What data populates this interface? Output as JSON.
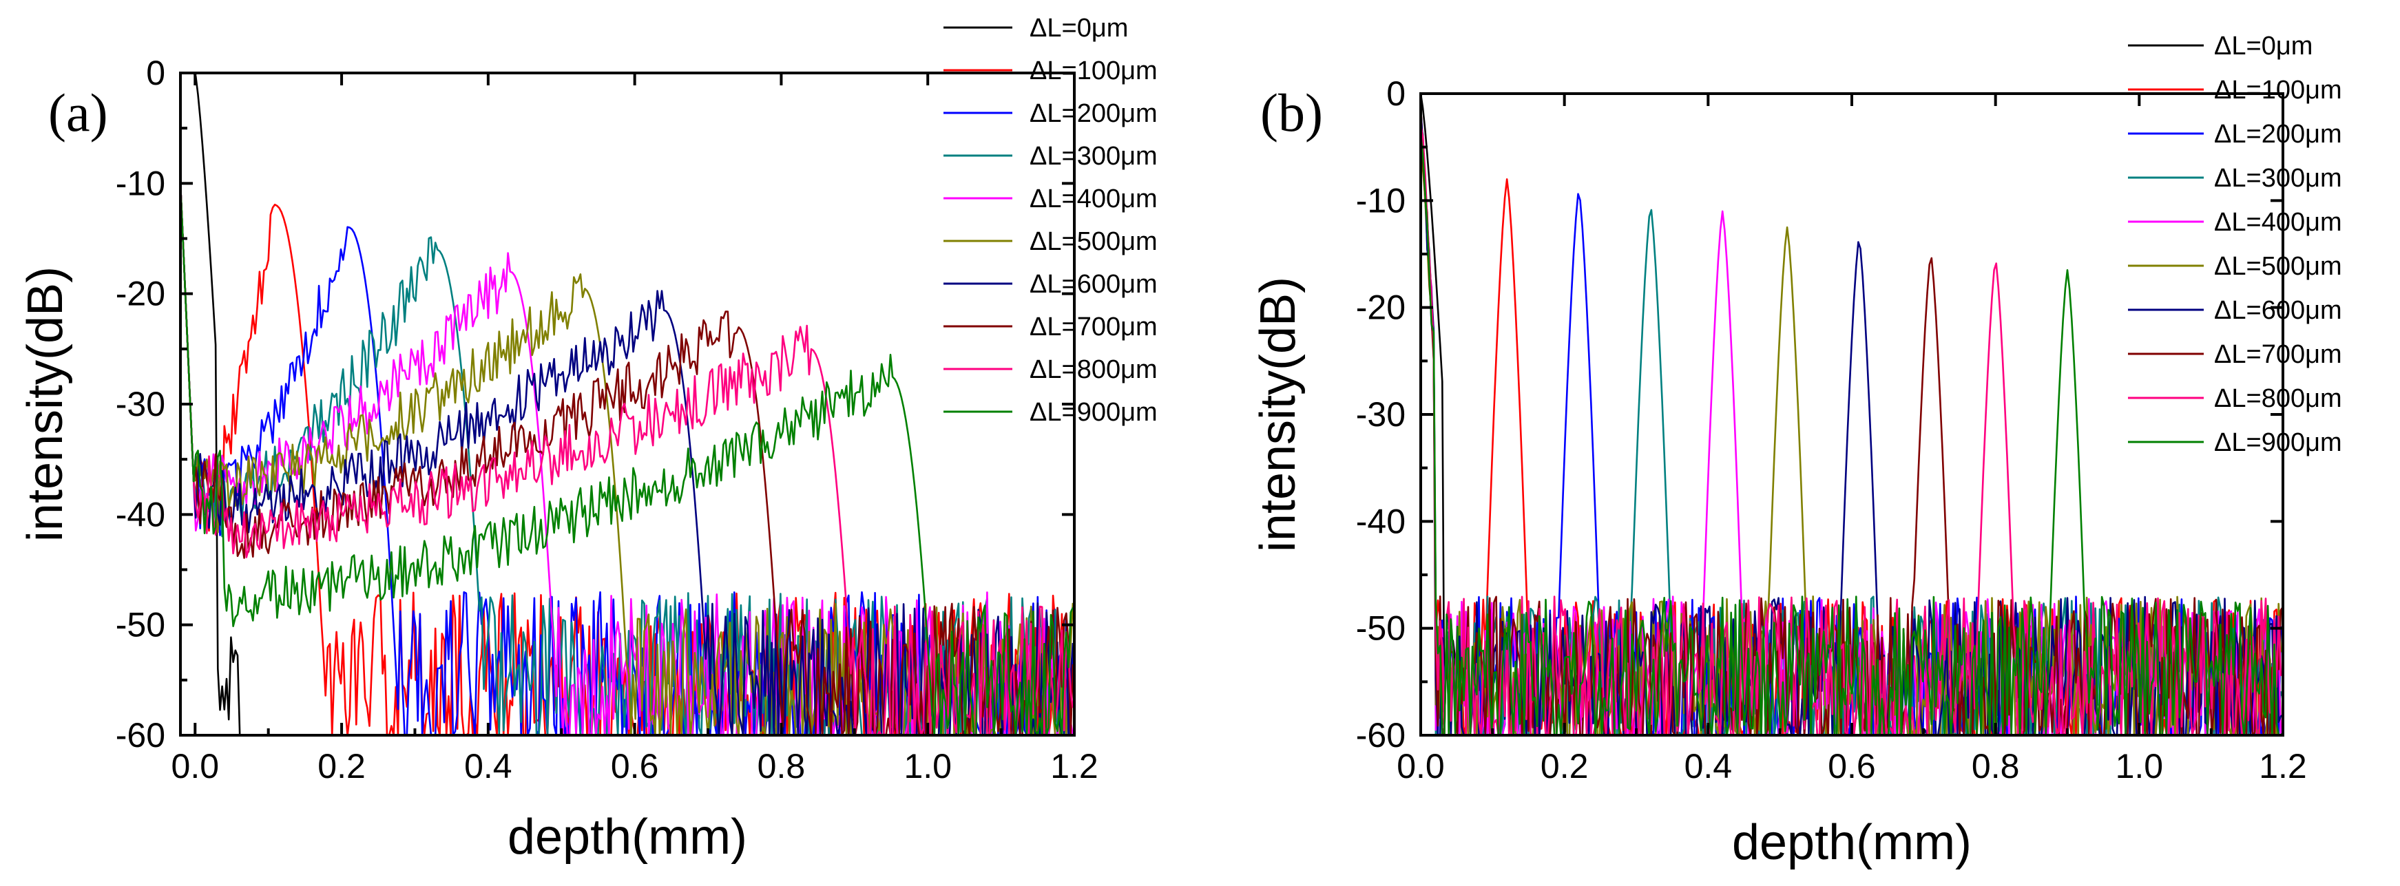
{
  "chart_data": [
    {
      "type": "line",
      "panel_label": "(a)",
      "xlabel": "depth(mm)",
      "ylabel": "intensity(dB)",
      "xlim": [
        -0.02,
        1.2
      ],
      "ylim": [
        -60,
        0
      ],
      "xticks": [
        "0.0",
        "0.2",
        "0.4",
        "0.6",
        "0.8",
        "1.0",
        "1.2"
      ],
      "yticks": [
        "0",
        "-10",
        "-20",
        "-30",
        "-40",
        "-50",
        "-60"
      ],
      "legend_position": "top-right",
      "series": [
        {
          "name": "ΔL=0μm",
          "color": "#000000",
          "peak_x": 0.0,
          "peak_y": 0,
          "floor": -60,
          "shape": "broad",
          "left_y": -60,
          "noise_min": 0,
          "noise_max": 0.1
        },
        {
          "name": "ΔL=100μm",
          "color": "#ff0000",
          "peak_x": 0.11,
          "peak_y": -12,
          "floor": -55,
          "shape": "broad",
          "left_y": -40,
          "noise_min": 0,
          "noise_max": 1.2
        },
        {
          "name": "ΔL=200μm",
          "color": "#0000ff",
          "peak_x": 0.21,
          "peak_y": -14,
          "floor": -55,
          "shape": "broad",
          "left_y": -40,
          "noise_min": 0,
          "noise_max": 1.2
        },
        {
          "name": "ΔL=300μm",
          "color": "#008080",
          "peak_x": 0.33,
          "peak_y": -16,
          "floor": -55,
          "shape": "broad",
          "left_y": -40,
          "noise_min": 0,
          "noise_max": 1.2
        },
        {
          "name": "ΔL=400μm",
          "color": "#ff00ff",
          "peak_x": 0.43,
          "peak_y": -18,
          "floor": -55,
          "shape": "broad",
          "left_y": -38,
          "noise_min": 0,
          "noise_max": 1.2
        },
        {
          "name": "ΔL=500μm",
          "color": "#808000",
          "peak_x": 0.53,
          "peak_y": -19.5,
          "floor": -56,
          "shape": "broad",
          "left_y": -38,
          "noise_min": 0,
          "noise_max": 1.2
        },
        {
          "name": "ΔL=600μm",
          "color": "#000080",
          "peak_x": 0.64,
          "peak_y": -21.5,
          "floor": -56,
          "shape": "broad",
          "left_y": -40,
          "noise_min": 0,
          "noise_max": 1.2
        },
        {
          "name": "ΔL=700μm",
          "color": "#800000",
          "peak_x": 0.74,
          "peak_y": -23,
          "floor": -56,
          "shape": "broad",
          "left_y": -42,
          "noise_min": 0,
          "noise_max": 1.2
        },
        {
          "name": "ΔL=800μm",
          "color": "#ff0080",
          "peak_x": 0.84,
          "peak_y": -25,
          "floor": -56,
          "shape": "broad",
          "left_y": -42,
          "noise_min": 0,
          "noise_max": 1.2
        },
        {
          "name": "ΔL=900μm",
          "color": "#008000",
          "peak_x": 0.95,
          "peak_y": -27.5,
          "floor": -56,
          "shape": "broad",
          "left_y": -48,
          "noise_min": 0,
          "noise_max": 1.2
        }
      ]
    },
    {
      "type": "line",
      "panel_label": "(b)",
      "xlabel": "depth(mm)",
      "ylabel": "intensity(dB)",
      "xlim": [
        0.0,
        1.2
      ],
      "ylim": [
        -60,
        0
      ],
      "xticks": [
        "0.0",
        "0.2",
        "0.4",
        "0.6",
        "0.8",
        "1.0",
        "1.2"
      ],
      "yticks": [
        "0",
        "-10",
        "-20",
        "-30",
        "-40",
        "-50",
        "-60"
      ],
      "legend_position": "top-right",
      "series": [
        {
          "name": "ΔL=0μm",
          "color": "#000000",
          "peak_x": 0.0,
          "peak_y": 0,
          "floor": -60,
          "shape": "sharp",
          "noise_min": 0,
          "noise_max": 0.1
        },
        {
          "name": "ΔL=100μm",
          "color": "#ff0000",
          "peak_x": 0.12,
          "peak_y": -8,
          "floor": -55,
          "shape": "sharp",
          "noise_min": 0,
          "noise_max": 1.2
        },
        {
          "name": "ΔL=200μm",
          "color": "#0000ff",
          "peak_x": 0.22,
          "peak_y": -9,
          "floor": -55,
          "shape": "sharp",
          "noise_min": 0,
          "noise_max": 1.2
        },
        {
          "name": "ΔL=300μm",
          "color": "#008080",
          "peak_x": 0.32,
          "peak_y": -10.5,
          "floor": -55,
          "shape": "sharp",
          "noise_min": 0,
          "noise_max": 1.2
        },
        {
          "name": "ΔL=400μm",
          "color": "#ff00ff",
          "peak_x": 0.42,
          "peak_y": -11,
          "floor": -55,
          "shape": "sharp",
          "noise_min": 0,
          "noise_max": 1.2
        },
        {
          "name": "ΔL=500μm",
          "color": "#808000",
          "peak_x": 0.51,
          "peak_y": -12.5,
          "floor": -55,
          "shape": "sharp",
          "noise_min": 0,
          "noise_max": 1.2
        },
        {
          "name": "ΔL=600μm",
          "color": "#000080",
          "peak_x": 0.61,
          "peak_y": -13.5,
          "floor": -55,
          "shape": "sharp",
          "noise_min": 0,
          "noise_max": 1.2
        },
        {
          "name": "ΔL=700μm",
          "color": "#800000",
          "peak_x": 0.71,
          "peak_y": -15,
          "floor": -55,
          "shape": "sharp",
          "noise_min": 0,
          "noise_max": 1.2
        },
        {
          "name": "ΔL=800μm",
          "color": "#ff0080",
          "peak_x": 0.8,
          "peak_y": -15.5,
          "floor": -55,
          "shape": "sharp",
          "noise_min": 0,
          "noise_max": 1.2
        },
        {
          "name": "ΔL=900μm",
          "color": "#008000",
          "peak_x": 0.9,
          "peak_y": -16.5,
          "floor": -55,
          "shape": "sharp",
          "noise_min": 0,
          "noise_max": 1.2
        }
      ]
    }
  ]
}
